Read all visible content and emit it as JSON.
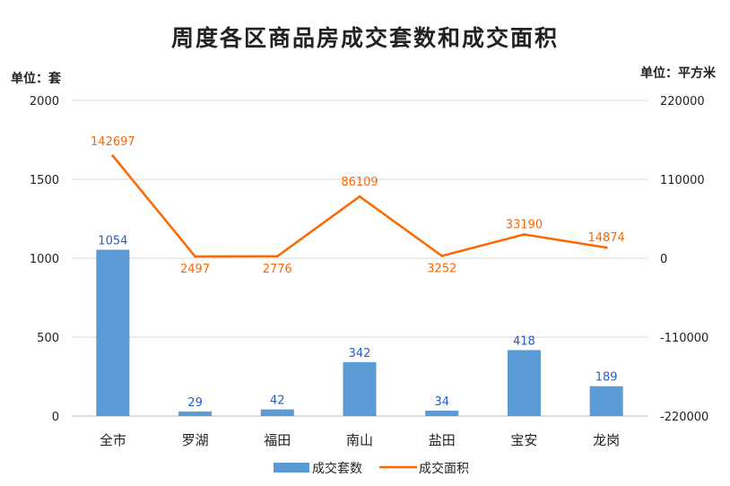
{
  "chart_data": {
    "type": "bar+line",
    "title": "周度各区商品房成交套数和成交面积",
    "left_unit": "单位：套",
    "right_unit": "单位：平方米",
    "categories": [
      "全市",
      "罗湖",
      "福田",
      "南山",
      "盐田",
      "宝安",
      "龙岗"
    ],
    "series": [
      {
        "name": "成交套数",
        "type": "bar",
        "axis": "left",
        "values": [
          1054,
          29,
          42,
          342,
          34,
          418,
          189
        ]
      },
      {
        "name": "成交面积",
        "type": "line",
        "axis": "right",
        "values": [
          142697,
          2497,
          2776,
          86109,
          3252,
          33190,
          14874
        ]
      }
    ],
    "left_axis": {
      "ylim": [
        0,
        2000
      ],
      "ticks": [
        "0",
        "500",
        "1000",
        "1500",
        "2000"
      ]
    },
    "right_axis": {
      "ylim": [
        -220000,
        220000
      ],
      "ticks": [
        "-220000",
        "-110000",
        "0",
        "110000",
        "220000"
      ]
    },
    "grid": true,
    "legend_position": "bottom",
    "colors": {
      "bar": "#5b9bd5",
      "line": "#ff6600",
      "bar_label": "#1f5ec9",
      "grid": "#d9d9d9"
    }
  }
}
